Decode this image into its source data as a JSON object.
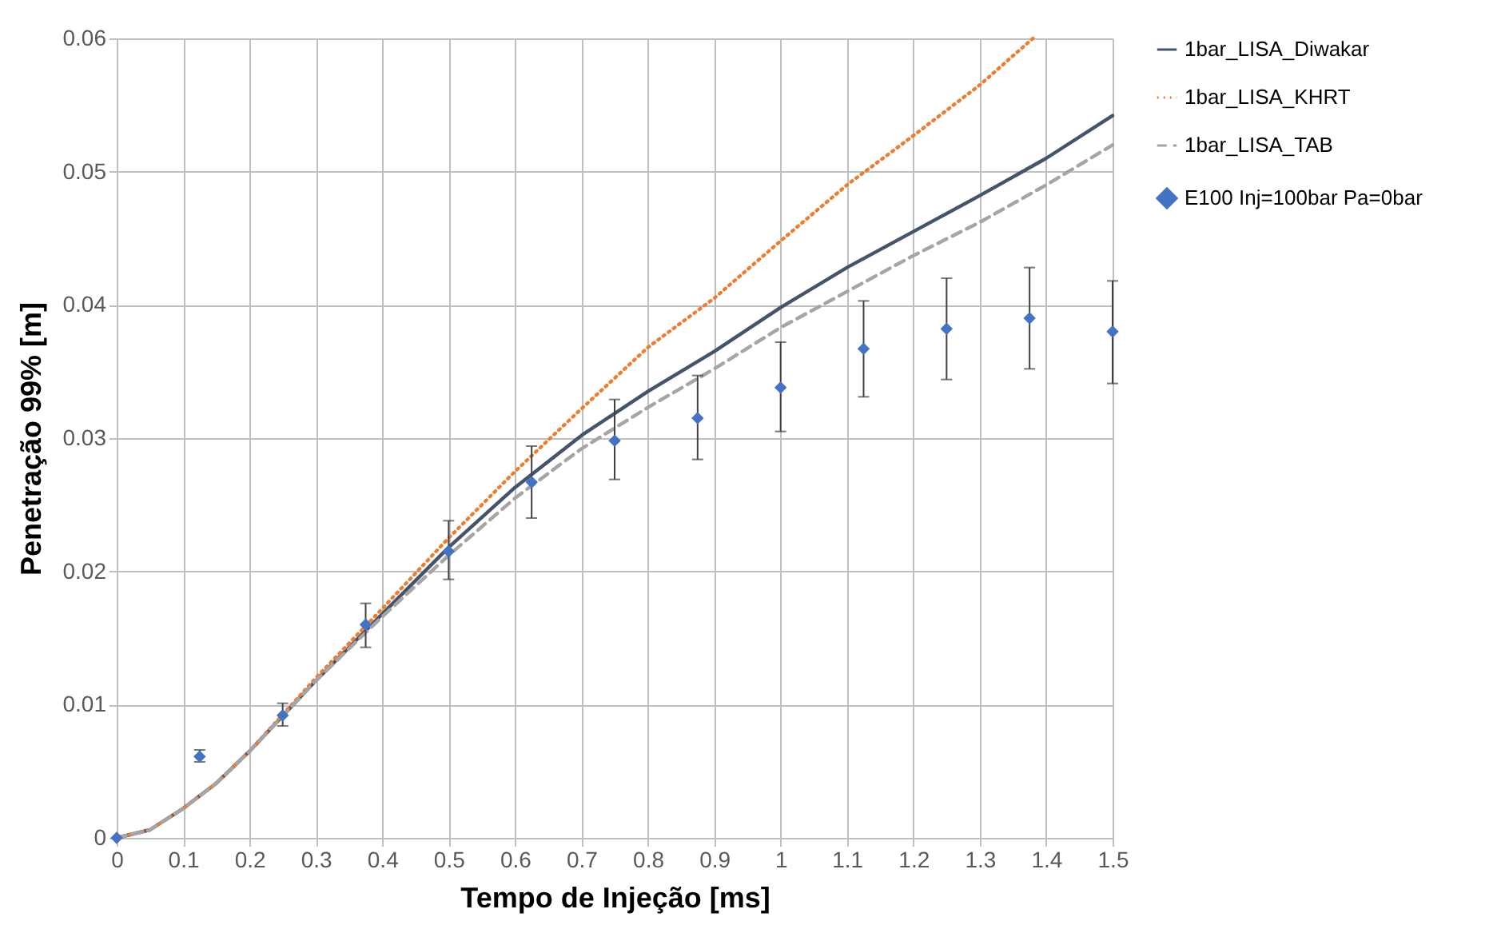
{
  "chart_data": {
    "type": "line",
    "xlabel": "Tempo de Injeção [ms]",
    "ylabel": "Penetração 99% [m]",
    "xlim": [
      0,
      1.5
    ],
    "ylim": [
      0,
      0.06
    ],
    "xticks": [
      0,
      0.1,
      0.2,
      0.3,
      0.4,
      0.5,
      0.6,
      0.7,
      0.8,
      0.9,
      1,
      1.1,
      1.2,
      1.3,
      1.4,
      1.5
    ],
    "yticks": [
      0,
      0.01,
      0.02,
      0.03,
      0.04,
      0.05,
      0.06
    ],
    "grid": true,
    "legend": "right",
    "series": [
      {
        "name": "1bar_LISA_Diwakar",
        "type": "line",
        "color": "#44546a",
        "line_style": "solid",
        "marker": "none",
        "x": [
          0,
          0.05,
          0.1,
          0.15,
          0.2,
          0.3,
          0.4,
          0.5,
          0.6,
          0.7,
          0.8,
          0.9,
          1,
          1.1,
          1.2,
          1.3,
          1.4,
          1.5
        ],
        "values": [
          0,
          0.0006,
          0.0022,
          0.0041,
          0.0065,
          0.0118,
          0.0168,
          0.0218,
          0.0263,
          0.0302,
          0.0335,
          0.0365,
          0.0398,
          0.0428,
          0.0455,
          0.0482,
          0.051,
          0.0542
        ]
      },
      {
        "name": "1bar_LISA_KHRT",
        "type": "line",
        "color": "#ed7d31",
        "line_style": "dotted",
        "marker": "none",
        "x": [
          0,
          0.05,
          0.1,
          0.15,
          0.2,
          0.3,
          0.4,
          0.5,
          0.6,
          0.7,
          0.8,
          0.9,
          1,
          1.1,
          1.2,
          1.3,
          1.38
        ],
        "values": [
          0,
          0.0006,
          0.0022,
          0.0041,
          0.0065,
          0.012,
          0.0172,
          0.0225,
          0.0275,
          0.0322,
          0.0368,
          0.0405,
          0.0448,
          0.049,
          0.0527,
          0.0565,
          0.06
        ]
      },
      {
        "name": "1bar_LISA_TAB",
        "type": "line",
        "color": "#a5a5a5",
        "line_style": "dashed",
        "marker": "none",
        "x": [
          0,
          0.05,
          0.1,
          0.15,
          0.2,
          0.3,
          0.4,
          0.5,
          0.6,
          0.7,
          0.8,
          0.9,
          1,
          1.1,
          1.2,
          1.3,
          1.4,
          1.5
        ],
        "values": [
          0,
          0.0006,
          0.0022,
          0.0041,
          0.0065,
          0.0118,
          0.0166,
          0.0212,
          0.0255,
          0.0292,
          0.0323,
          0.0352,
          0.0383,
          0.041,
          0.0437,
          0.0462,
          0.049,
          0.052
        ]
      },
      {
        "name": "E100 Inj=100bar Pa=0bar",
        "type": "scatter",
        "color": "#4472c4",
        "marker": "diamond",
        "x": [
          0,
          0.125,
          0.25,
          0.375,
          0.5,
          0.625,
          0.75,
          0.875,
          1,
          1.125,
          1.25,
          1.375,
          1.5
        ],
        "values": [
          0,
          0.0061,
          0.0092,
          0.016,
          0.0215,
          0.0267,
          0.0298,
          0.0315,
          0.0338,
          0.0367,
          0.0382,
          0.039,
          0.038
        ],
        "errors": [
          null,
          [
            0.0057,
            0.0066
          ],
          [
            0.0084,
            0.0101
          ],
          [
            0.0143,
            0.0176
          ],
          [
            0.0194,
            0.0238
          ],
          [
            0.024,
            0.0294
          ],
          [
            0.0269,
            0.0329
          ],
          [
            0.0284,
            0.0347
          ],
          [
            0.0305,
            0.0372
          ],
          [
            0.0331,
            0.0403
          ],
          [
            0.0344,
            0.042
          ],
          [
            0.0352,
            0.0428
          ],
          [
            0.0341,
            0.0418
          ]
        ]
      }
    ]
  }
}
